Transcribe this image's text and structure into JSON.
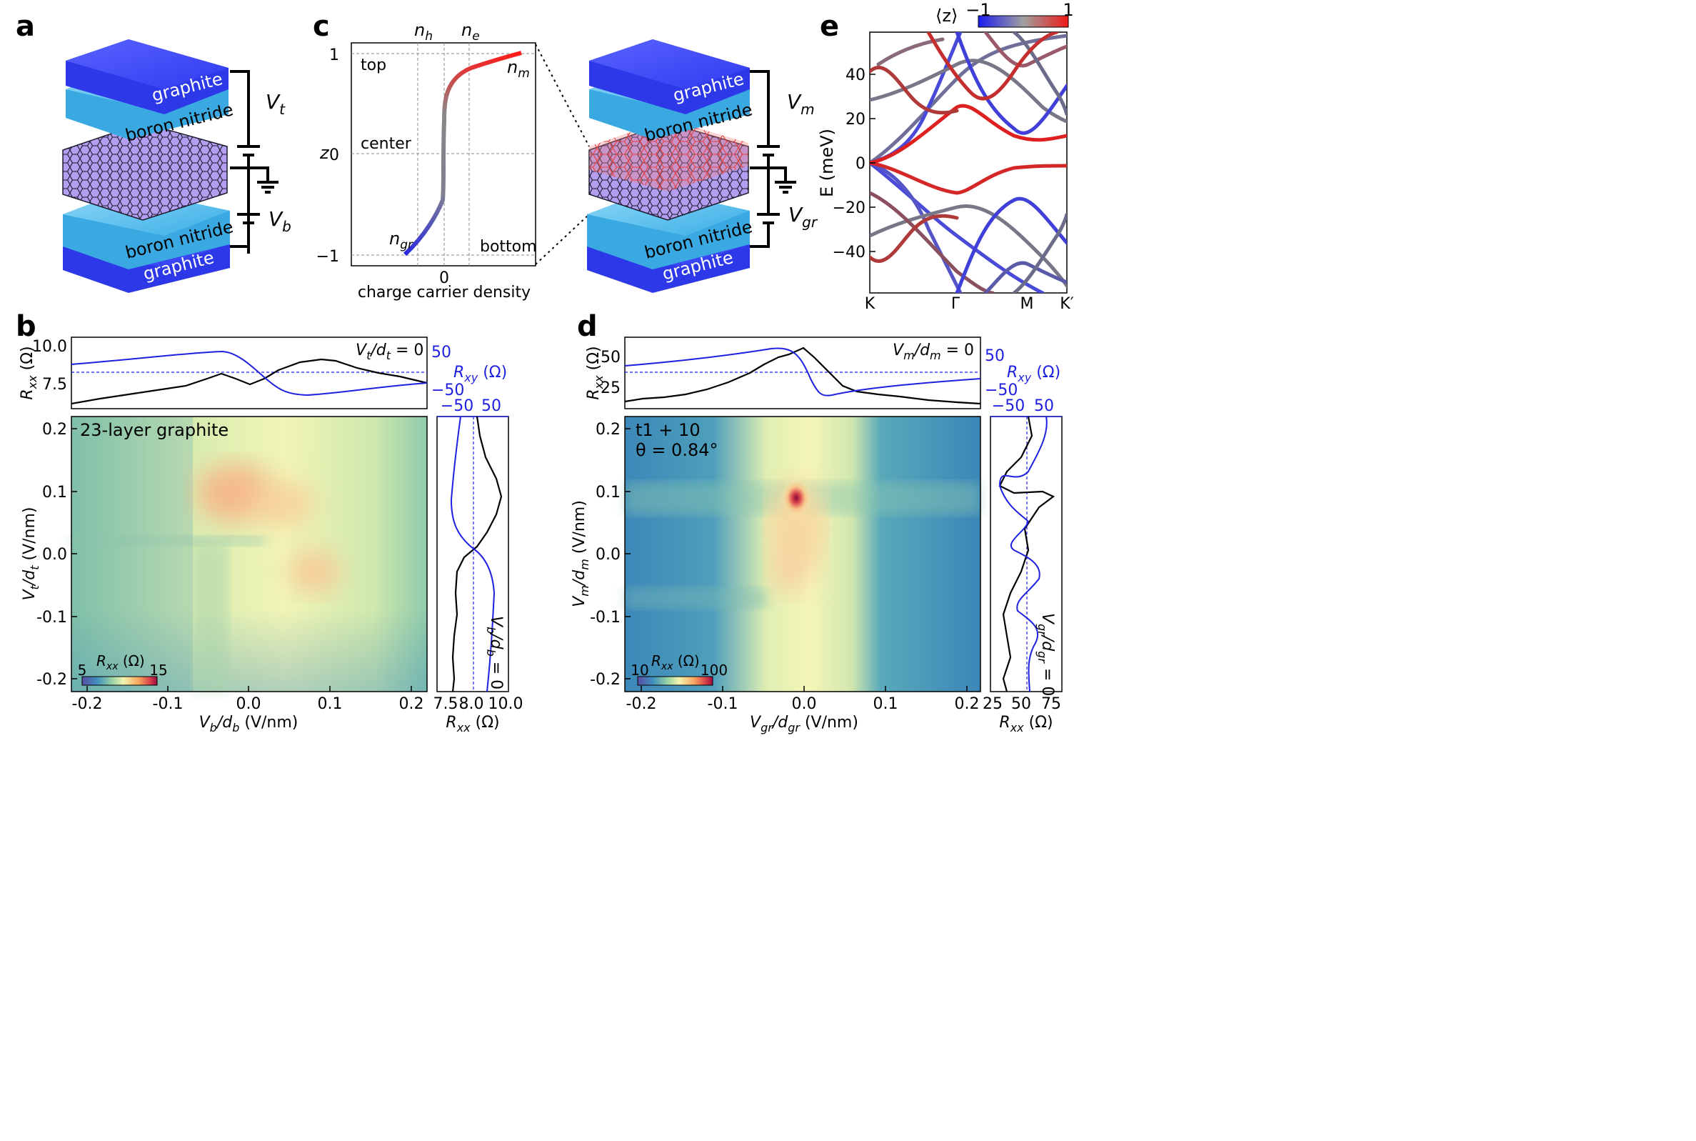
{
  "panels": {
    "a": "a",
    "b": "b",
    "c": "c",
    "d": "d",
    "e": "e"
  },
  "stack": {
    "graphite": "graphite",
    "bn": "boron nitride"
  },
  "voltages": {
    "vt": "V",
    "vt_sub": "t",
    "vb": "V",
    "vb_sub": "b",
    "vm": "V",
    "vm_sub": "m",
    "vgr": "V",
    "vgr_sub": "gr"
  },
  "panel_c": {
    "top_labels": [
      "n",
      "n"
    ],
    "top_subs": [
      "h",
      "e"
    ],
    "ytick_labels": [
      "1",
      "0",
      "−1"
    ],
    "ylabel": "z",
    "xtick": "0",
    "xlabel": "charge carrier density",
    "region_labels": [
      "top",
      "center",
      "bottom"
    ],
    "curve_labels": [
      "n",
      "n"
    ],
    "curve_subs": [
      "m",
      "gr"
    ]
  },
  "panel_e": {
    "colorbar_label": "⟨z⟩",
    "colorbar_ticks": [
      "−1",
      "1"
    ],
    "ylabel": "E (meV)",
    "yticks": [
      "40",
      "20",
      "0",
      "−20",
      "−40"
    ],
    "xticks": [
      "K",
      "Γ",
      "M",
      "K′"
    ]
  },
  "panel_b": {
    "top_yticks_left": [
      "10.0",
      "7.5"
    ],
    "top_ylabel_left": "R",
    "top_yticks_right": [
      "50",
      "−50"
    ],
    "top_ylabel_right": "R",
    "top_annotation": "V",
    "right_top_ticks": [
      "−50",
      "50"
    ],
    "right_xticks": [
      "7.5",
      "8.0",
      "10.0"
    ],
    "right_xlabel": "R",
    "right_annotation": "V",
    "main_annotation": "23-layer graphite",
    "yticks": [
      "0.2",
      "0.1",
      "0.0",
      "-0.1",
      "-0.2"
    ],
    "xticks": [
      "-0.2",
      "-0.1",
      "0.0",
      "0.1",
      "0.2"
    ],
    "xlabel": "V",
    "ylabel": "V",
    "colorbar_label": "R",
    "colorbar_min": "5",
    "colorbar_max": "15"
  },
  "panel_d": {
    "top_yticks_left": [
      "50",
      "25"
    ],
    "top_ylabel_left": "R",
    "top_yticks_right": [
      "50",
      "−50"
    ],
    "top_ylabel_right": "R",
    "top_annotation": "V",
    "right_top_ticks": [
      "−50",
      "50"
    ],
    "right_xticks": [
      "25",
      "50",
      "75"
    ],
    "right_xlabel": "R",
    "right_annotation": "V",
    "main_annotation_1": "t1 + 10",
    "main_annotation_2": "θ = 0.84°",
    "yticks": [
      "0.2",
      "0.1",
      "0.0",
      "-0.1",
      "-0.2"
    ],
    "xticks": [
      "-0.2",
      "-0.1",
      "0.0",
      "0.1",
      "0.2"
    ],
    "xlabel": "V",
    "ylabel": "V",
    "colorbar_label": "R",
    "colorbar_min": "10",
    "colorbar_max": "100"
  },
  "colors": {
    "graphite": "#3a45f0",
    "bn": "#41b4ea",
    "bn_light": "#77cff5",
    "lattice": "#a98ee8",
    "blue": "#1f1fe0",
    "red": "#e01818",
    "black": "#000000"
  }
}
